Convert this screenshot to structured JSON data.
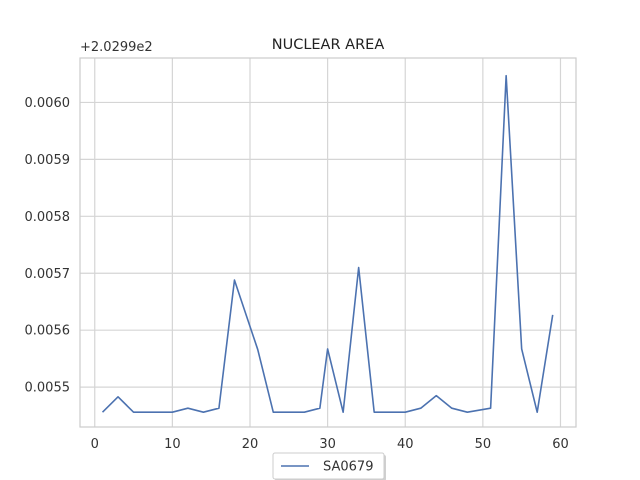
{
  "chart_data": {
    "type": "line",
    "title": "NUCLEAR AREA",
    "offset_label": "+2.0299e2",
    "xlabel": "",
    "ylabel": "",
    "xlim": [
      -1.9,
      62
    ],
    "ylim": [
      0.00543,
      0.006078
    ],
    "xticks": [
      0,
      10,
      20,
      30,
      40,
      50,
      60
    ],
    "xtick_labels": [
      "0",
      "10",
      "20",
      "30",
      "40",
      "50",
      "60"
    ],
    "yticks": [
      0.0055,
      0.0056,
      0.0057,
      0.0058,
      0.0059,
      0.006
    ],
    "ytick_labels": [
      "0.0055",
      "0.0056",
      "0.0057",
      "0.0058",
      "0.0059",
      "0.0060"
    ],
    "grid": true,
    "legend_position": "bottom-center",
    "series": [
      {
        "name": "SA0679",
        "color": "#4c72b0",
        "x": [
          1,
          3,
          5,
          7,
          9,
          10,
          12,
          14,
          16,
          18,
          21,
          23,
          25,
          27,
          29,
          30,
          32,
          34,
          36,
          38,
          40,
          42,
          44,
          46,
          48,
          51,
          53,
          55,
          57,
          59
        ],
        "y": [
          0.005456,
          0.005483,
          0.005456,
          0.005456,
          0.005456,
          0.005456,
          0.005463,
          0.005456,
          0.005463,
          0.005688,
          0.005566,
          0.005456,
          0.005456,
          0.005456,
          0.005463,
          0.005567,
          0.005456,
          0.00571,
          0.005456,
          0.005456,
          0.005456,
          0.005463,
          0.005485,
          0.005463,
          0.005456,
          0.005463,
          0.006047,
          0.005567,
          0.005456,
          0.005627
        ]
      }
    ]
  }
}
